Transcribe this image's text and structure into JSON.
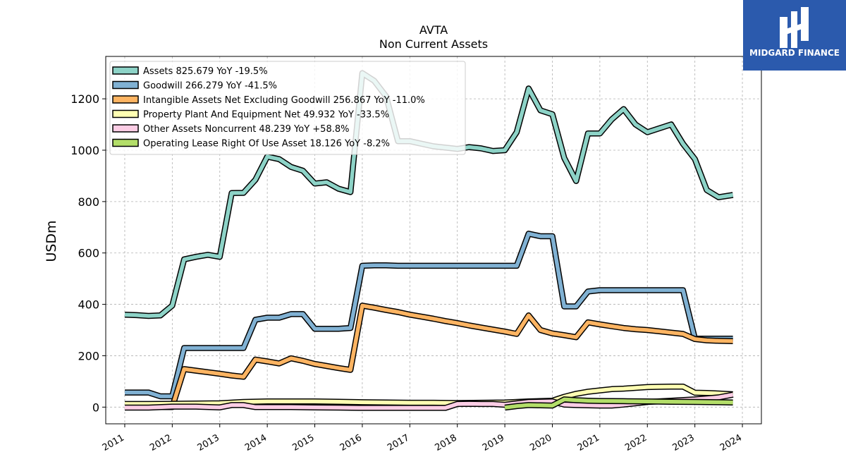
{
  "brand": {
    "name": "MIDGARD FINANCE"
  },
  "chart_data": {
    "type": "line",
    "title": "AVTA",
    "subtitle": "Non Current  Assets",
    "xlabel": "",
    "ylabel": "USDm",
    "xlim": [
      2010.6,
      2024.4
    ],
    "ylim": [
      -65,
      1365
    ],
    "x_ticks": [
      "2011",
      "2012",
      "2013",
      "2014",
      "2015",
      "2016",
      "2017",
      "2018",
      "2019",
      "2020",
      "2021",
      "2022",
      "2023",
      "2024"
    ],
    "y_ticks": [
      0,
      200,
      400,
      600,
      800,
      1000,
      1200
    ],
    "grid": true,
    "legend_position": "top-left",
    "series": [
      {
        "name": "Assets  825.679 YoY -19.5%",
        "color": "#8dd3c7",
        "points": [
          [
            2011.0,
            360
          ],
          [
            2011.25,
            358
          ],
          [
            2011.5,
            355
          ],
          [
            2011.75,
            357
          ],
          [
            2012.0,
            395
          ],
          [
            2012.25,
            575
          ],
          [
            2012.5,
            585
          ],
          [
            2012.75,
            593
          ],
          [
            2013.0,
            585
          ],
          [
            2013.25,
            833
          ],
          [
            2013.5,
            834
          ],
          [
            2013.75,
            885
          ],
          [
            2014.0,
            975
          ],
          [
            2014.25,
            965
          ],
          [
            2014.5,
            935
          ],
          [
            2014.75,
            920
          ],
          [
            2015.0,
            870
          ],
          [
            2015.25,
            875
          ],
          [
            2015.5,
            850
          ],
          [
            2015.75,
            837
          ],
          [
            2016.0,
            1300
          ],
          [
            2016.25,
            1270
          ],
          [
            2016.5,
            1210
          ],
          [
            2016.75,
            1035
          ],
          [
            2017.0,
            1035
          ],
          [
            2017.25,
            1025
          ],
          [
            2017.5,
            1015
          ],
          [
            2017.75,
            1010
          ],
          [
            2018.0,
            1005
          ],
          [
            2018.25,
            1012
          ],
          [
            2018.5,
            1007
          ],
          [
            2018.75,
            997
          ],
          [
            2019.0,
            1000
          ],
          [
            2019.25,
            1070
          ],
          [
            2019.5,
            1240
          ],
          [
            2019.75,
            1155
          ],
          [
            2020.0,
            1140
          ],
          [
            2020.25,
            970
          ],
          [
            2020.5,
            880
          ],
          [
            2020.75,
            1065
          ],
          [
            2021.0,
            1065
          ],
          [
            2021.25,
            1120
          ],
          [
            2021.5,
            1160
          ],
          [
            2021.75,
            1100
          ],
          [
            2022.0,
            1070
          ],
          [
            2022.25,
            1085
          ],
          [
            2022.5,
            1100
          ],
          [
            2022.75,
            1025
          ],
          [
            2023.0,
            965
          ],
          [
            2023.25,
            845
          ],
          [
            2023.5,
            817
          ],
          [
            2023.8,
            825.679
          ]
        ]
      },
      {
        "name": "Goodwill  266.279 YoY -41.5%",
        "color": "#80b1d3",
        "points": [
          [
            2011.0,
            57
          ],
          [
            2011.25,
            57
          ],
          [
            2011.5,
            57
          ],
          [
            2011.75,
            42
          ],
          [
            2012.0,
            42
          ],
          [
            2012.25,
            230
          ],
          [
            2012.5,
            230
          ],
          [
            2012.75,
            230
          ],
          [
            2013.0,
            230
          ],
          [
            2013.25,
            230
          ],
          [
            2013.5,
            230
          ],
          [
            2013.75,
            340
          ],
          [
            2014.0,
            348
          ],
          [
            2014.25,
            348
          ],
          [
            2014.5,
            362
          ],
          [
            2014.75,
            362
          ],
          [
            2015.0,
            305
          ],
          [
            2015.25,
            305
          ],
          [
            2015.5,
            305
          ],
          [
            2015.75,
            308
          ],
          [
            2016.0,
            550
          ],
          [
            2016.25,
            552
          ],
          [
            2016.5,
            552
          ],
          [
            2016.75,
            550
          ],
          [
            2017.0,
            550
          ],
          [
            2017.25,
            550
          ],
          [
            2017.5,
            550
          ],
          [
            2017.75,
            550
          ],
          [
            2018.0,
            550
          ],
          [
            2018.25,
            550
          ],
          [
            2018.5,
            550
          ],
          [
            2018.75,
            550
          ],
          [
            2019.0,
            550
          ],
          [
            2019.25,
            550
          ],
          [
            2019.5,
            675
          ],
          [
            2019.75,
            665
          ],
          [
            2020.0,
            665
          ],
          [
            2020.25,
            392
          ],
          [
            2020.5,
            392
          ],
          [
            2020.75,
            450
          ],
          [
            2021.0,
            455
          ],
          [
            2021.25,
            455
          ],
          [
            2021.5,
            455
          ],
          [
            2021.75,
            455
          ],
          [
            2022.0,
            455
          ],
          [
            2022.25,
            455
          ],
          [
            2022.5,
            455
          ],
          [
            2022.75,
            455
          ],
          [
            2023.0,
            266.3
          ],
          [
            2023.25,
            266.3
          ],
          [
            2023.5,
            266.3
          ],
          [
            2023.8,
            266.279
          ]
        ]
      },
      {
        "name": "Intangible Assets Net Excluding Goodwill  256.867 YoY -11.0%",
        "color": "#fdb462",
        "points": [
          [
            2011.0,
            0
          ],
          [
            2011.5,
            0
          ],
          [
            2012.0,
            0
          ],
          [
            2012.25,
            148
          ],
          [
            2012.5,
            142
          ],
          [
            2012.75,
            136
          ],
          [
            2013.0,
            130
          ],
          [
            2013.25,
            123
          ],
          [
            2013.5,
            118
          ],
          [
            2013.75,
            185
          ],
          [
            2014.0,
            178
          ],
          [
            2014.25,
            170
          ],
          [
            2014.5,
            190
          ],
          [
            2014.75,
            180
          ],
          [
            2015.0,
            168
          ],
          [
            2015.25,
            160
          ],
          [
            2015.5,
            152
          ],
          [
            2015.75,
            145
          ],
          [
            2016.0,
            395
          ],
          [
            2016.25,
            387
          ],
          [
            2016.5,
            378
          ],
          [
            2016.75,
            370
          ],
          [
            2017.0,
            360
          ],
          [
            2017.25,
            352
          ],
          [
            2017.5,
            344
          ],
          [
            2017.75,
            335
          ],
          [
            2018.0,
            327
          ],
          [
            2018.25,
            318
          ],
          [
            2018.5,
            310
          ],
          [
            2018.75,
            302
          ],
          [
            2019.0,
            294
          ],
          [
            2019.25,
            285
          ],
          [
            2019.5,
            357
          ],
          [
            2019.75,
            300
          ],
          [
            2020.0,
            287
          ],
          [
            2020.25,
            280
          ],
          [
            2020.5,
            272
          ],
          [
            2020.75,
            330
          ],
          [
            2021.0,
            322
          ],
          [
            2021.25,
            315
          ],
          [
            2021.5,
            308
          ],
          [
            2021.75,
            303
          ],
          [
            2022.0,
            300
          ],
          [
            2022.25,
            295
          ],
          [
            2022.5,
            290
          ],
          [
            2022.75,
            285
          ],
          [
            2023.0,
            265
          ],
          [
            2023.25,
            260
          ],
          [
            2023.5,
            258
          ],
          [
            2023.8,
            256.867
          ]
        ]
      },
      {
        "name": "Property Plant And Equipment Net  49.932 YoY -33.5%",
        "color": "#ffffb3",
        "points": [
          [
            2011.0,
            12
          ],
          [
            2011.5,
            12
          ],
          [
            2012.0,
            13
          ],
          [
            2012.5,
            14
          ],
          [
            2013.0,
            15
          ],
          [
            2013.5,
            20
          ],
          [
            2014.0,
            22
          ],
          [
            2014.5,
            22
          ],
          [
            2015.0,
            22
          ],
          [
            2015.5,
            21
          ],
          [
            2016.0,
            19
          ],
          [
            2016.5,
            18
          ],
          [
            2017.0,
            17
          ],
          [
            2017.5,
            17
          ],
          [
            2018.0,
            16
          ],
          [
            2018.5,
            17
          ],
          [
            2019.0,
            18
          ],
          [
            2019.5,
            22
          ],
          [
            2020.0,
            25
          ],
          [
            2020.25,
            40
          ],
          [
            2020.5,
            52
          ],
          [
            2020.75,
            60
          ],
          [
            2021.0,
            65
          ],
          [
            2021.25,
            70
          ],
          [
            2021.5,
            72
          ],
          [
            2021.75,
            75
          ],
          [
            2022.0,
            78
          ],
          [
            2022.25,
            79
          ],
          [
            2022.5,
            80
          ],
          [
            2022.75,
            80
          ],
          [
            2023.0,
            56
          ],
          [
            2023.25,
            55
          ],
          [
            2023.5,
            53
          ],
          [
            2023.8,
            49.932
          ]
        ]
      },
      {
        "name": "Other Assets Noncurrent  48.239 YoY +58.8%",
        "color": "#fccde5",
        "points": [
          [
            2011.0,
            -2
          ],
          [
            2011.5,
            -2
          ],
          [
            2012.0,
            2
          ],
          [
            2012.5,
            2
          ],
          [
            2013.0,
            -1
          ],
          [
            2013.25,
            8
          ],
          [
            2013.5,
            8
          ],
          [
            2013.75,
            0
          ],
          [
            2014.0,
            0
          ],
          [
            2014.5,
            0
          ],
          [
            2015.0,
            -1
          ],
          [
            2015.5,
            -2
          ],
          [
            2016.0,
            -3
          ],
          [
            2016.5,
            -3
          ],
          [
            2017.0,
            -3
          ],
          [
            2017.5,
            -3
          ],
          [
            2017.75,
            -3
          ],
          [
            2018.0,
            12
          ],
          [
            2018.25,
            13
          ],
          [
            2018.5,
            12
          ],
          [
            2018.75,
            12
          ],
          [
            2019.0,
            9
          ],
          [
            2019.5,
            20
          ],
          [
            2020.0,
            22
          ],
          [
            2020.25,
            10
          ],
          [
            2020.5,
            8
          ],
          [
            2021.0,
            6
          ],
          [
            2021.25,
            6
          ],
          [
            2021.5,
            10
          ],
          [
            2021.75,
            15
          ],
          [
            2022.0,
            20
          ],
          [
            2022.5,
            25
          ],
          [
            2023.0,
            30
          ],
          [
            2023.5,
            38
          ],
          [
            2023.8,
            48.239
          ]
        ]
      },
      {
        "name": "Operating Lease Right Of Use Asset  18.126 YoY -8.2%",
        "color": "#b3de69",
        "points": [
          [
            2019.0,
            -2
          ],
          [
            2019.25,
            4
          ],
          [
            2019.5,
            8
          ],
          [
            2019.75,
            7
          ],
          [
            2020.0,
            6
          ],
          [
            2020.25,
            30
          ],
          [
            2020.5,
            27
          ],
          [
            2020.75,
            25
          ],
          [
            2021.0,
            24
          ],
          [
            2021.5,
            23
          ],
          [
            2022.0,
            22
          ],
          [
            2022.5,
            21
          ],
          [
            2023.0,
            20
          ],
          [
            2023.5,
            19
          ],
          [
            2023.8,
            18.126
          ]
        ]
      }
    ]
  }
}
